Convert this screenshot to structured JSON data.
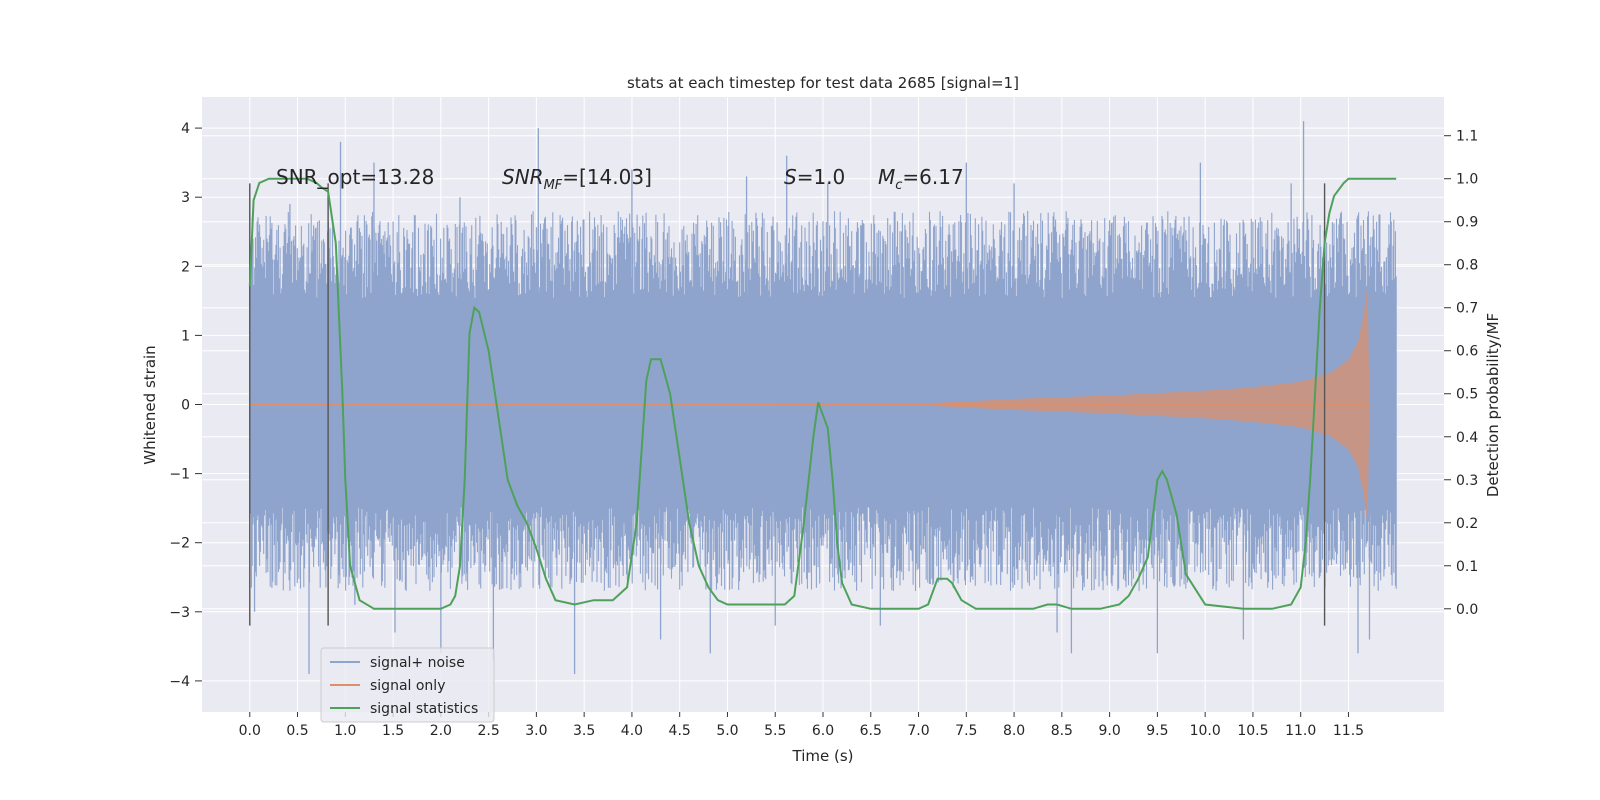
{
  "chart_data": {
    "type": "line",
    "title": "stats at each timestep for test data 2685 [signal=1]",
    "xlabel": "Time (s)",
    "ylabel": "Whitened strain",
    "ylabel_right": "Detection probability/MF",
    "xlim": [
      -0.5,
      12.5
    ],
    "ylim": [
      -4.45,
      4.45
    ],
    "ylim_right": [
      -0.24,
      1.19
    ],
    "x_ticks": [
      0.0,
      0.5,
      1.0,
      1.5,
      2.0,
      2.5,
      3.0,
      3.5,
      4.0,
      4.5,
      5.0,
      5.5,
      6.0,
      6.5,
      7.0,
      7.5,
      8.0,
      8.5,
      9.0,
      9.5,
      10.0,
      10.5,
      11.0,
      11.5
    ],
    "x_tick_labels": [
      "0.0",
      "0.5",
      "1.0",
      "1.5",
      "2.0",
      "2.5",
      "3.0",
      "3.5",
      "4.0",
      "4.5",
      "5.0",
      "5.5",
      "6.0",
      "6.5",
      "7.0",
      "7.5",
      "8.0",
      "8.5",
      "9.0",
      "9.5",
      "10.0",
      "10.5",
      "11.0",
      "11.5"
    ],
    "y_ticks": [
      -4,
      -3,
      -2,
      -1,
      0,
      1,
      2,
      3,
      4
    ],
    "y_tick_labels": [
      "−4",
      "−3",
      "−2",
      "−1",
      "0",
      "1",
      "2",
      "3",
      "4"
    ],
    "y_ticks_right": [
      0.0,
      0.1,
      0.2,
      0.3,
      0.4,
      0.5,
      0.6,
      0.7,
      0.8,
      0.9,
      1.0,
      1.1
    ],
    "y_tick_labels_right": [
      "0.0",
      "0.1",
      "0.2",
      "0.3",
      "0.4",
      "0.5",
      "0.6",
      "0.7",
      "0.8",
      "0.9",
      "1.0",
      "1.1"
    ],
    "grid": true,
    "legend_position": "lower-left",
    "annotations": {
      "snr_opt": "SNR_opt=13.28",
      "snr_mf_main": "SNR",
      "snr_mf_sub": "MF",
      "snr_mf_value": "=[14.03]",
      "s_sym": "S",
      "s_value": "=1.0",
      "mc_sym": "M",
      "mc_sub": "c",
      "mc_value": "=6.17"
    },
    "vertical_markers": [
      {
        "x": 0.0,
        "y_range": [
          -3.2,
          3.2
        ]
      },
      {
        "x": 0.82,
        "y_range": [
          -3.2,
          3.2
        ]
      },
      {
        "x": 11.25,
        "y_range": [
          -3.2,
          3.2
        ]
      }
    ],
    "series": [
      {
        "name": "signal+ noise",
        "color": "#8fa4cc",
        "x_range": [
          0.0,
          12.0
        ],
        "envelope_dense": [
          -1.3,
          1.3
        ],
        "typical_extent": [
          -2.7,
          2.8
        ],
        "peak_samples": [
          {
            "x": 0.05,
            "y": -3.0
          },
          {
            "x": 0.42,
            "y": 2.9
          },
          {
            "x": 0.62,
            "y": -3.9
          },
          {
            "x": 0.95,
            "y": 3.8
          },
          {
            "x": 1.1,
            "y": -2.9
          },
          {
            "x": 1.3,
            "y": 3.5
          },
          {
            "x": 1.52,
            "y": -3.3
          },
          {
            "x": 2.0,
            "y": -3.6
          },
          {
            "x": 2.2,
            "y": 3.0
          },
          {
            "x": 2.55,
            "y": -3.7
          },
          {
            "x": 3.02,
            "y": 4.0
          },
          {
            "x": 3.4,
            "y": -3.9
          },
          {
            "x": 4.0,
            "y": 3.4
          },
          {
            "x": 4.3,
            "y": -3.4
          },
          {
            "x": 4.82,
            "y": -3.6
          },
          {
            "x": 5.2,
            "y": 3.3
          },
          {
            "x": 5.5,
            "y": -3.2
          },
          {
            "x": 5.62,
            "y": 3.6
          },
          {
            "x": 6.05,
            "y": 3.2
          },
          {
            "x": 6.6,
            "y": -3.2
          },
          {
            "x": 7.5,
            "y": 3.5
          },
          {
            "x": 8.0,
            "y": 3.2
          },
          {
            "x": 8.45,
            "y": -3.3
          },
          {
            "x": 8.6,
            "y": -3.6
          },
          {
            "x": 9.5,
            "y": -3.6
          },
          {
            "x": 9.95,
            "y": 3.5
          },
          {
            "x": 10.4,
            "y": -3.4
          },
          {
            "x": 10.9,
            "y": 3.2
          },
          {
            "x": 11.03,
            "y": 4.1
          },
          {
            "x": 11.6,
            "y": -3.6
          },
          {
            "x": 11.72,
            "y": -3.4
          }
        ]
      },
      {
        "name": "signal only",
        "color": "#dd8f6b",
        "envelope": [
          {
            "x": 0.0,
            "y": 0.0
          },
          {
            "x": 7.0,
            "y": 0.01
          },
          {
            "x": 8.0,
            "y": 0.08
          },
          {
            "x": 9.0,
            "y": 0.13
          },
          {
            "x": 10.0,
            "y": 0.2
          },
          {
            "x": 10.5,
            "y": 0.25
          },
          {
            "x": 11.0,
            "y": 0.33
          },
          {
            "x": 11.3,
            "y": 0.45
          },
          {
            "x": 11.5,
            "y": 0.65
          },
          {
            "x": 11.6,
            "y": 0.9
          },
          {
            "x": 11.66,
            "y": 1.3
          },
          {
            "x": 11.7,
            "y": 1.75
          },
          {
            "x": 11.72,
            "y": 0.0
          }
        ]
      },
      {
        "name": "signal statistics",
        "color": "#4ea15a",
        "x": [
          0.0,
          0.04,
          0.1,
          0.2,
          0.4,
          0.6,
          0.7,
          0.75,
          0.82,
          0.9,
          0.97,
          1.0,
          1.05,
          1.15,
          1.3,
          1.6,
          2.0,
          2.1,
          2.15,
          2.2,
          2.25,
          2.3,
          2.35,
          2.4,
          2.5,
          2.6,
          2.7,
          2.8,
          2.9,
          3.0,
          3.1,
          3.2,
          3.4,
          3.6,
          3.8,
          3.95,
          4.05,
          4.15,
          4.2,
          4.25,
          4.3,
          4.4,
          4.5,
          4.6,
          4.7,
          4.8,
          4.9,
          5.0,
          5.2,
          5.4,
          5.6,
          5.7,
          5.8,
          5.9,
          5.95,
          6.0,
          6.05,
          6.1,
          6.15,
          6.2,
          6.3,
          6.5,
          6.8,
          7.0,
          7.1,
          7.2,
          7.3,
          7.35,
          7.45,
          7.6,
          7.9,
          8.2,
          8.35,
          8.45,
          8.6,
          8.9,
          9.1,
          9.2,
          9.3,
          9.4,
          9.5,
          9.55,
          9.6,
          9.7,
          9.8,
          10.0,
          10.4,
          10.7,
          10.9,
          11.0,
          11.05,
          11.1,
          11.15,
          11.2,
          11.25,
          11.3,
          11.35,
          11.45,
          11.5,
          11.6,
          11.7,
          11.8,
          11.9,
          12.0
        ],
        "y": [
          0.75,
          0.95,
          0.99,
          1.0,
          1.0,
          1.0,
          0.99,
          0.98,
          0.97,
          0.85,
          0.5,
          0.3,
          0.1,
          0.02,
          0.0,
          0.0,
          0.0,
          0.01,
          0.03,
          0.1,
          0.3,
          0.64,
          0.7,
          0.69,
          0.6,
          0.45,
          0.3,
          0.24,
          0.2,
          0.14,
          0.07,
          0.02,
          0.01,
          0.02,
          0.02,
          0.05,
          0.2,
          0.53,
          0.58,
          0.58,
          0.58,
          0.5,
          0.35,
          0.2,
          0.1,
          0.05,
          0.02,
          0.01,
          0.01,
          0.01,
          0.01,
          0.03,
          0.2,
          0.4,
          0.48,
          0.45,
          0.42,
          0.3,
          0.15,
          0.06,
          0.01,
          0.0,
          0.0,
          0.0,
          0.01,
          0.07,
          0.07,
          0.06,
          0.02,
          0.0,
          0.0,
          0.0,
          0.01,
          0.01,
          0.0,
          0.0,
          0.01,
          0.03,
          0.07,
          0.12,
          0.3,
          0.32,
          0.3,
          0.22,
          0.08,
          0.01,
          0.0,
          0.0,
          0.01,
          0.05,
          0.15,
          0.3,
          0.5,
          0.7,
          0.85,
          0.92,
          0.96,
          0.99,
          1.0,
          1.0,
          1.0,
          1.0,
          1.0,
          1.0
        ]
      }
    ]
  }
}
